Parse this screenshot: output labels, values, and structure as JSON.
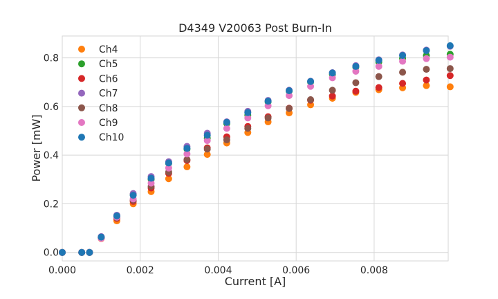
{
  "chart_data": {
    "type": "scatter",
    "title": "D4349 V20063 Post Burn-In",
    "xlabel": "Current [A]",
    "ylabel": "Power [mW]",
    "xlim": [
      0,
      0.0099
    ],
    "ylim": [
      -0.035,
      0.89
    ],
    "x_ticks": [
      0,
      0.002,
      0.004,
      0.006,
      0.008
    ],
    "x_tick_labels": [
      "0.000",
      "0.002",
      "0.004",
      "0.006",
      "0.008"
    ],
    "y_ticks": [
      0,
      0.2,
      0.4,
      0.6,
      0.8
    ],
    "y_tick_labels": [
      "0.0",
      "0.2",
      "0.4",
      "0.6",
      "0.8"
    ],
    "grid": true,
    "legend_position": "upper-left",
    "x": [
      0,
      0.0005,
      0.0007,
      0.001,
      0.0014,
      0.00182,
      0.00228,
      0.00273,
      0.0032,
      0.00372,
      0.00422,
      0.00476,
      0.00528,
      0.00582,
      0.00637,
      0.00693,
      0.00753,
      0.00812,
      0.00873,
      0.00934,
      0.00995
    ],
    "series": [
      {
        "name": "Ch4",
        "color": "#ff7f0e",
        "values": [
          0,
          0,
          0,
          0.057,
          0.13,
          0.2,
          0.25,
          0.303,
          0.352,
          0.403,
          0.45,
          0.493,
          0.537,
          0.574,
          0.607,
          0.634,
          0.658,
          0.669,
          0.677,
          0.686,
          0.681
        ]
      },
      {
        "name": "Ch5",
        "color": "#2ca02c",
        "values": [
          0,
          0,
          0,
          0.062,
          0.148,
          0.238,
          0.3,
          0.366,
          0.425,
          0.47,
          0.53,
          0.565,
          0.619,
          0.663,
          0.701,
          0.732,
          0.762,
          0.783,
          0.798,
          0.81,
          0.815
        ]
      },
      {
        "name": "Ch6",
        "color": "#d62728",
        "values": [
          0,
          0,
          0,
          0.06,
          0.14,
          0.21,
          0.265,
          0.325,
          0.378,
          0.43,
          0.475,
          0.518,
          0.558,
          0.593,
          0.626,
          0.643,
          0.663,
          0.678,
          0.695,
          0.709,
          0.727
        ]
      },
      {
        "name": "Ch7",
        "color": "#9467bd",
        "values": [
          0,
          0,
          0,
          0.065,
          0.153,
          0.242,
          0.312,
          0.373,
          0.436,
          0.49,
          0.537,
          0.58,
          0.625,
          0.667,
          0.704,
          0.739,
          0.768,
          0.792,
          0.812,
          0.832,
          0.848
        ]
      },
      {
        "name": "Ch8",
        "color": "#8c564b",
        "values": [
          0,
          0,
          0,
          0.06,
          0.143,
          0.215,
          0.272,
          0.33,
          0.382,
          0.425,
          0.463,
          0.51,
          0.553,
          0.592,
          0.628,
          0.667,
          0.698,
          0.723,
          0.741,
          0.753,
          0.756
        ]
      },
      {
        "name": "Ch9",
        "color": "#e377c2",
        "values": [
          0,
          0,
          0,
          0.058,
          0.145,
          0.22,
          0.285,
          0.347,
          0.405,
          0.46,
          0.51,
          0.553,
          0.603,
          0.645,
          0.683,
          0.718,
          0.745,
          0.765,
          0.786,
          0.797,
          0.803
        ]
      },
      {
        "name": "Ch10",
        "color": "#1f77b4",
        "values": [
          0,
          0,
          0,
          0.063,
          0.15,
          0.235,
          0.305,
          0.368,
          0.428,
          0.482,
          0.535,
          0.575,
          0.622,
          0.665,
          0.703,
          0.738,
          0.765,
          0.79,
          0.81,
          0.83,
          0.85
        ]
      }
    ]
  }
}
